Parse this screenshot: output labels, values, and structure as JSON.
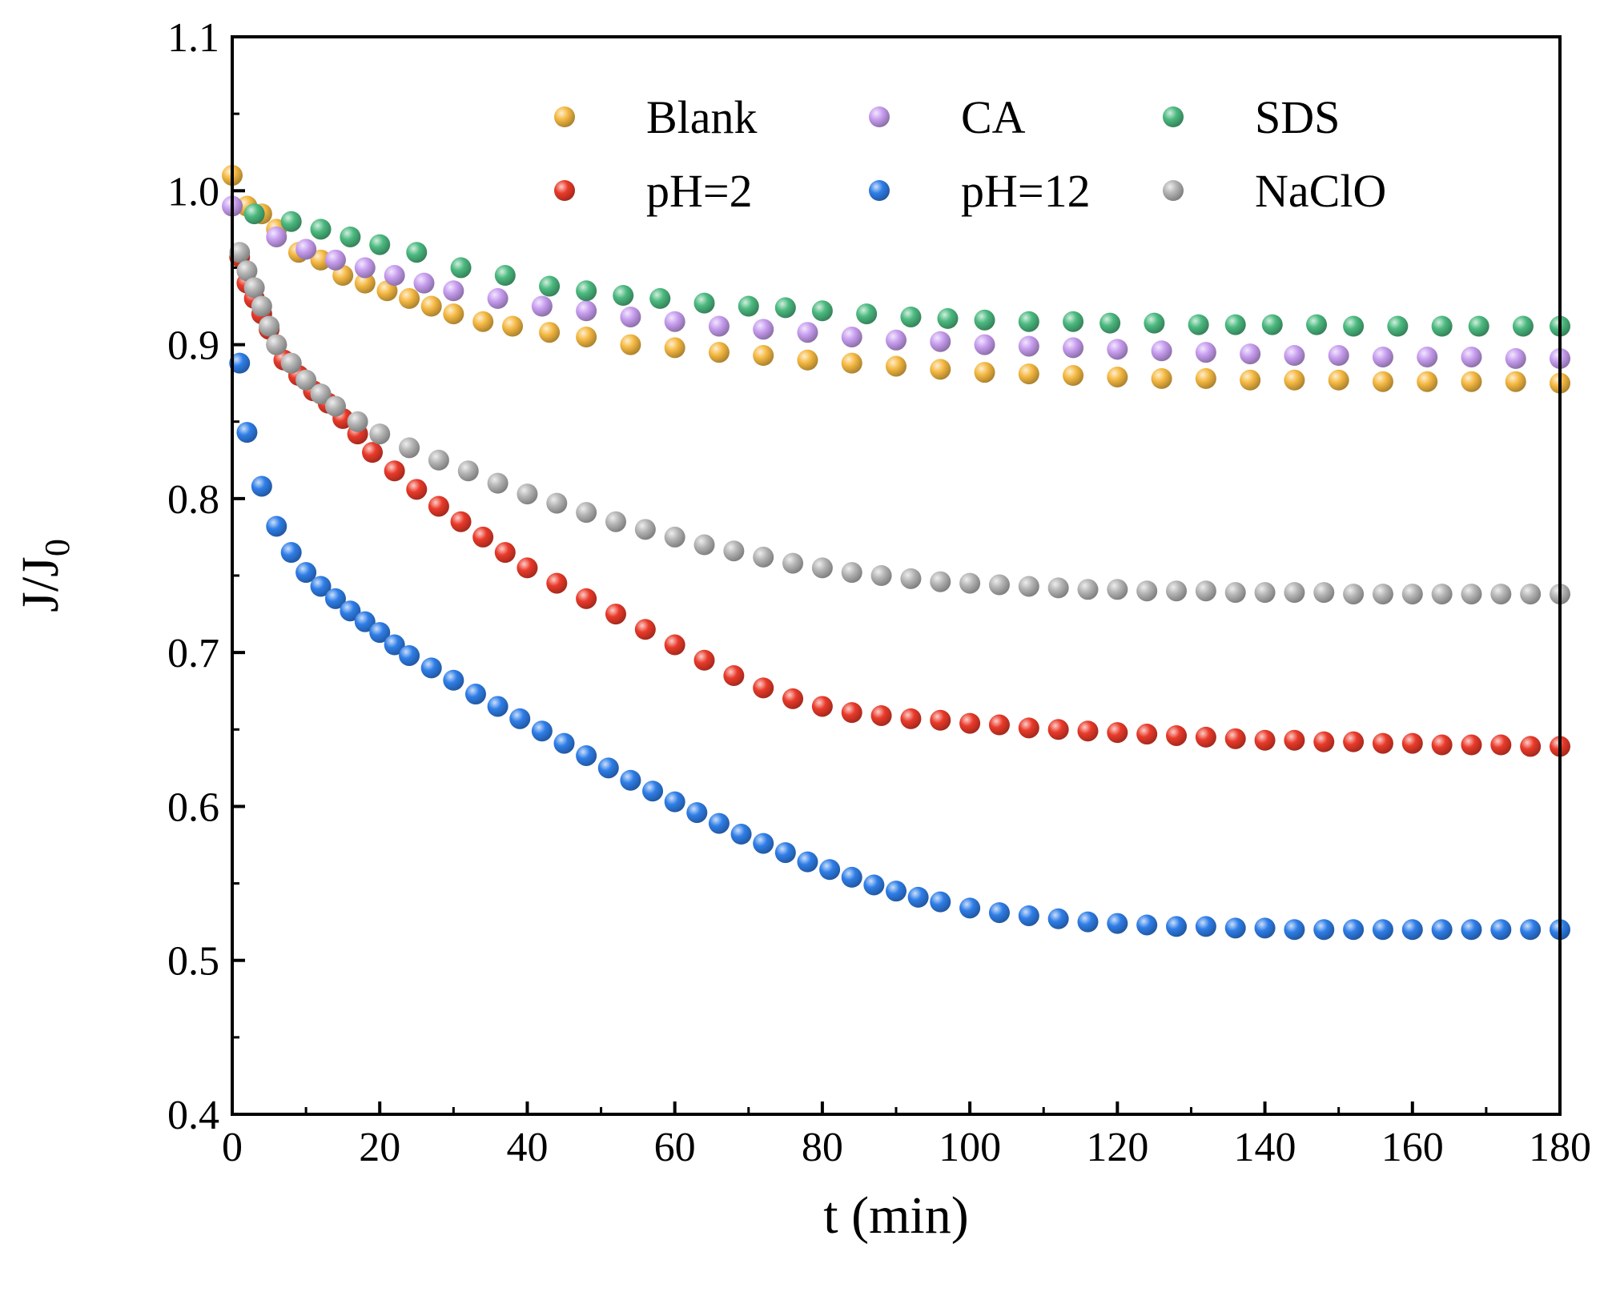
{
  "chart_data": {
    "type": "scatter",
    "title": "",
    "xlabel": "t (min)",
    "ylabel": "J/J0",
    "ylabel_main": "J/J",
    "ylabel_sub": "0",
    "xlim": [
      0,
      180
    ],
    "ylim": [
      0.4,
      1.1
    ],
    "xticks": [
      0,
      20,
      40,
      60,
      80,
      100,
      120,
      140,
      160,
      180
    ],
    "yticks": [
      0.4,
      0.5,
      0.6,
      0.7,
      0.8,
      0.9,
      1.0,
      1.1
    ],
    "xtick_labels": [
      "0",
      "20",
      "40",
      "60",
      "80",
      "100",
      "120",
      "140",
      "160",
      "180"
    ],
    "ytick_labels": [
      "0.4",
      "0.5",
      "0.6",
      "0.7",
      "0.8",
      "0.9",
      "1.0",
      "1.1"
    ],
    "legend_position": "top-right",
    "series": [
      {
        "name": "Blank",
        "color": "#f5b942",
        "x": [
          0,
          2,
          4,
          6,
          9,
          12,
          15,
          18,
          21,
          24,
          27,
          30,
          34,
          38,
          43,
          48,
          54,
          60,
          66,
          72,
          78,
          84,
          90,
          96,
          102,
          108,
          114,
          120,
          126,
          132,
          138,
          144,
          150,
          156,
          162,
          168,
          174,
          180
        ],
        "y": [
          1.01,
          0.99,
          0.985,
          0.975,
          0.96,
          0.955,
          0.945,
          0.94,
          0.935,
          0.93,
          0.925,
          0.92,
          0.915,
          0.912,
          0.908,
          0.905,
          0.9,
          0.898,
          0.895,
          0.893,
          0.89,
          0.888,
          0.886,
          0.884,
          0.882,
          0.881,
          0.88,
          0.879,
          0.878,
          0.878,
          0.877,
          0.877,
          0.877,
          0.876,
          0.876,
          0.876,
          0.876,
          0.875
        ]
      },
      {
        "name": "CA",
        "color": "#c89ef0",
        "x": [
          0,
          6,
          10,
          14,
          18,
          22,
          26,
          30,
          36,
          42,
          48,
          54,
          60,
          66,
          72,
          78,
          84,
          90,
          96,
          102,
          108,
          114,
          120,
          126,
          132,
          138,
          144,
          150,
          156,
          162,
          168,
          174,
          180
        ],
        "y": [
          0.99,
          0.97,
          0.962,
          0.955,
          0.95,
          0.945,
          0.94,
          0.935,
          0.93,
          0.925,
          0.922,
          0.918,
          0.915,
          0.912,
          0.91,
          0.908,
          0.905,
          0.903,
          0.902,
          0.9,
          0.899,
          0.898,
          0.897,
          0.896,
          0.895,
          0.894,
          0.893,
          0.893,
          0.892,
          0.892,
          0.892,
          0.891,
          0.891
        ]
      },
      {
        "name": "SDS",
        "color": "#4cba80",
        "x": [
          3,
          8,
          12,
          16,
          20,
          25,
          31,
          37,
          43,
          48,
          53,
          58,
          64,
          70,
          75,
          80,
          86,
          92,
          97,
          102,
          108,
          114,
          119,
          125,
          131,
          136,
          141,
          147,
          152,
          158,
          164,
          169,
          175,
          180
        ],
        "y": [
          0.985,
          0.98,
          0.975,
          0.97,
          0.965,
          0.96,
          0.95,
          0.945,
          0.938,
          0.935,
          0.932,
          0.93,
          0.927,
          0.925,
          0.924,
          0.922,
          0.92,
          0.918,
          0.917,
          0.916,
          0.915,
          0.915,
          0.914,
          0.914,
          0.913,
          0.913,
          0.913,
          0.913,
          0.912,
          0.912,
          0.912,
          0.912,
          0.912,
          0.912
        ]
      },
      {
        "name": "pH=2",
        "color": "#ea3a2a",
        "x": [
          1,
          2,
          3,
          4,
          5,
          6,
          7,
          9,
          11,
          13,
          15,
          17,
          19,
          22,
          25,
          28,
          31,
          34,
          37,
          40,
          44,
          48,
          52,
          56,
          60,
          64,
          68,
          72,
          76,
          80,
          84,
          88,
          92,
          96,
          100,
          104,
          108,
          112,
          116,
          120,
          124,
          128,
          132,
          136,
          140,
          144,
          148,
          152,
          156,
          160,
          164,
          168,
          172,
          176,
          180
        ],
        "y": [
          0.957,
          0.94,
          0.93,
          0.92,
          0.91,
          0.9,
          0.89,
          0.88,
          0.87,
          0.862,
          0.852,
          0.842,
          0.83,
          0.818,
          0.806,
          0.795,
          0.785,
          0.775,
          0.765,
          0.755,
          0.745,
          0.735,
          0.725,
          0.715,
          0.705,
          0.695,
          0.685,
          0.677,
          0.67,
          0.665,
          0.661,
          0.659,
          0.657,
          0.656,
          0.654,
          0.653,
          0.651,
          0.65,
          0.649,
          0.648,
          0.647,
          0.646,
          0.645,
          0.644,
          0.643,
          0.643,
          0.642,
          0.642,
          0.641,
          0.641,
          0.64,
          0.64,
          0.64,
          0.639,
          0.639
        ]
      },
      {
        "name": "pH=12",
        "color": "#2f7ee8",
        "x": [
          1,
          2,
          4,
          6,
          8,
          10,
          12,
          14,
          16,
          18,
          20,
          22,
          24,
          27,
          30,
          33,
          36,
          39,
          42,
          45,
          48,
          51,
          54,
          57,
          60,
          63,
          66,
          69,
          72,
          75,
          78,
          81,
          84,
          87,
          90,
          93,
          96,
          100,
          104,
          108,
          112,
          116,
          120,
          124,
          128,
          132,
          136,
          140,
          144,
          148,
          152,
          156,
          160,
          164,
          168,
          172,
          176,
          180
        ],
        "y": [
          0.888,
          0.843,
          0.808,
          0.782,
          0.765,
          0.752,
          0.743,
          0.735,
          0.727,
          0.72,
          0.713,
          0.705,
          0.698,
          0.69,
          0.682,
          0.673,
          0.665,
          0.657,
          0.649,
          0.641,
          0.633,
          0.625,
          0.617,
          0.61,
          0.603,
          0.596,
          0.589,
          0.582,
          0.576,
          0.57,
          0.564,
          0.559,
          0.554,
          0.549,
          0.545,
          0.541,
          0.538,
          0.534,
          0.531,
          0.529,
          0.527,
          0.525,
          0.524,
          0.523,
          0.522,
          0.522,
          0.521,
          0.521,
          0.52,
          0.52,
          0.52,
          0.52,
          0.52,
          0.52,
          0.52,
          0.52,
          0.52,
          0.52
        ]
      },
      {
        "name": "NaClO",
        "color": "#b5b5b5",
        "x": [
          1,
          2,
          3,
          4,
          5,
          6,
          8,
          10,
          12,
          14,
          17,
          20,
          24,
          28,
          32,
          36,
          40,
          44,
          48,
          52,
          56,
          60,
          64,
          68,
          72,
          76,
          80,
          84,
          88,
          92,
          96,
          100,
          104,
          108,
          112,
          116,
          120,
          124,
          128,
          132,
          136,
          140,
          144,
          148,
          152,
          156,
          160,
          164,
          168,
          172,
          176,
          180
        ],
        "y": [
          0.96,
          0.948,
          0.937,
          0.925,
          0.912,
          0.9,
          0.888,
          0.877,
          0.868,
          0.86,
          0.85,
          0.842,
          0.833,
          0.825,
          0.818,
          0.81,
          0.803,
          0.797,
          0.791,
          0.785,
          0.78,
          0.775,
          0.77,
          0.766,
          0.762,
          0.758,
          0.755,
          0.752,
          0.75,
          0.748,
          0.746,
          0.745,
          0.744,
          0.743,
          0.742,
          0.741,
          0.741,
          0.74,
          0.74,
          0.74,
          0.739,
          0.739,
          0.739,
          0.739,
          0.738,
          0.738,
          0.738,
          0.738,
          0.738,
          0.738,
          0.738,
          0.738
        ]
      }
    ]
  }
}
